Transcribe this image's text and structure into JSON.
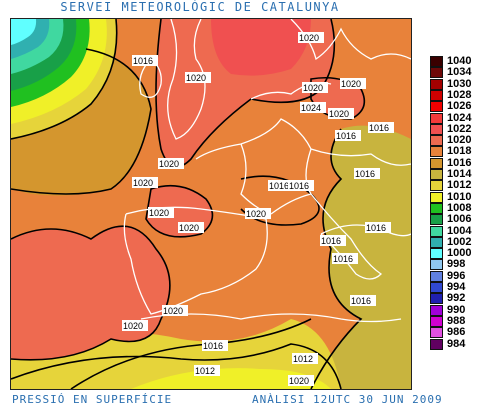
{
  "header": {
    "title": "SERVEI METEOROLÒGIC DE CATALUNYA"
  },
  "footer": {
    "left": "PRESSIÓ EN SUPERFÍCIE",
    "right": "ANÀLISI 12UTC 30 JUN 2009"
  },
  "legend": [
    {
      "label": "1040",
      "color": "#3a0000"
    },
    {
      "label": "1034",
      "color": "#6e0808"
    },
    {
      "label": "1030",
      "color": "#a40000"
    },
    {
      "label": "1028",
      "color": "#d00000"
    },
    {
      "label": "1026",
      "color": "#f00000"
    },
    {
      "label": "1024",
      "color": "#f23a3a"
    },
    {
      "label": "1022",
      "color": "#f05050"
    },
    {
      "label": "1020",
      "color": "#ee6a50"
    },
    {
      "label": "1018",
      "color": "#e8823a"
    },
    {
      "label": "1016",
      "color": "#d4962e"
    },
    {
      "label": "1014",
      "color": "#c8b43e"
    },
    {
      "label": "1012",
      "color": "#e6d43a"
    },
    {
      "label": "1010",
      "color": "#f0f028"
    },
    {
      "label": "1008",
      "color": "#20c020"
    },
    {
      "label": "1006",
      "color": "#18a048"
    },
    {
      "label": "1004",
      "color": "#40d8a0"
    },
    {
      "label": "1002",
      "color": "#30b0b0"
    },
    {
      "label": "1000",
      "color": "#60ffff"
    },
    {
      "label": "998",
      "color": "#90c8f0"
    },
    {
      "label": "996",
      "color": "#6080e0"
    },
    {
      "label": "994",
      "color": "#3048d0"
    },
    {
      "label": "992",
      "color": "#2020b0"
    },
    {
      "label": "990",
      "color": "#a000d8"
    },
    {
      "label": "988",
      "color": "#d000d0"
    },
    {
      "label": "986",
      "color": "#e050e0"
    },
    {
      "label": "984",
      "color": "#600060"
    }
  ],
  "isobar_labels": [
    {
      "text": "1020"
    },
    {
      "text": "1016"
    },
    {
      "text": "1020"
    },
    {
      "text": "1020"
    },
    {
      "text": "1024"
    },
    {
      "text": "1020"
    },
    {
      "text": "1020"
    },
    {
      "text": "1016"
    },
    {
      "text": "1020"
    },
    {
      "text": "1016"
    },
    {
      "text": "1020"
    },
    {
      "text": "1016"
    },
    {
      "text": "1016"
    },
    {
      "text": "1016"
    },
    {
      "text": "1020"
    },
    {
      "text": "1020"
    },
    {
      "text": "1016"
    },
    {
      "text": "1020"
    },
    {
      "text": "1016"
    },
    {
      "text": "1016"
    },
    {
      "text": "1016"
    },
    {
      "text": "1020"
    },
    {
      "text": "1020"
    },
    {
      "text": "1016"
    },
    {
      "text": "1012"
    },
    {
      "text": "1012"
    },
    {
      "text": "1020"
    }
  ]
}
